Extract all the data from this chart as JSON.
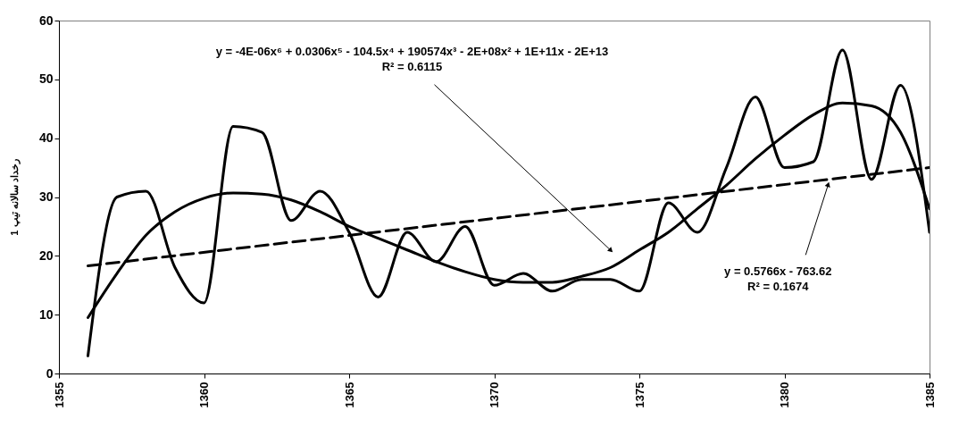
{
  "chart_data": {
    "type": "line",
    "ylabel": "رخداد سالانه تیپ 1",
    "x": [
      1356,
      1357,
      1358,
      1359,
      1360,
      1361,
      1362,
      1363,
      1364,
      1365,
      1366,
      1367,
      1368,
      1369,
      1370,
      1371,
      1372,
      1373,
      1374,
      1375,
      1376,
      1377,
      1378,
      1379,
      1380,
      1381,
      1382,
      1383,
      1384,
      1385
    ],
    "xlim": [
      1355,
      1385
    ],
    "xticks": [
      1355,
      1360,
      1365,
      1370,
      1375,
      1380,
      1385
    ],
    "ylim": [
      0,
      60
    ],
    "yticks": [
      0,
      10,
      20,
      30,
      40,
      50,
      60
    ],
    "grid": false,
    "series": [
      {
        "color": "#000000",
        "line_style": "solid",
        "values": [
          3,
          30,
          31,
          18,
          12,
          42,
          41,
          26,
          31,
          24,
          13,
          24,
          19,
          25,
          15,
          17,
          14,
          16,
          16,
          14,
          29,
          24,
          35,
          47,
          35,
          36,
          55,
          33,
          49,
          24
        ]
      },
      {
        "type": "line",
        "color": "#000000",
        "line_style": "solid",
        "x": [
          1356,
          1357,
          1358,
          1359,
          1360,
          1361,
          1362,
          1363,
          1364,
          1365,
          1366,
          1367,
          1368,
          1369,
          1370,
          1371,
          1372,
          1373,
          1374,
          1375,
          1376,
          1377,
          1378,
          1379,
          1380,
          1381,
          1382,
          1383,
          1384,
          1385
        ],
        "values": [
          9.5,
          17,
          23.5,
          27.5,
          29.8,
          30.7,
          30.5,
          29.5,
          27.5,
          25,
          23,
          21,
          19,
          17.3,
          16,
          15.5,
          15.5,
          16.5,
          18,
          21,
          24,
          28,
          32,
          36.5,
          40.5,
          44,
          46,
          45.5,
          41,
          28
        ]
      },
      {
        "type": "line",
        "color": "#000000",
        "line_style": "dashed",
        "x": [
          1356,
          1385
        ],
        "values": [
          18.3,
          35
        ]
      }
    ],
    "annotations": [
      "y = -4E-06x⁶ + 0.0306x⁵ - 104.5x⁴ + 190574x³ - 2E+08x² + 1E+11x - 2E+13",
      "R² = 0.6115",
      {
        "text": "y = 0.5766x - 763.62",
        "x": 1381.5,
        "y": 32
      },
      "R² = 0.1674"
    ]
  }
}
